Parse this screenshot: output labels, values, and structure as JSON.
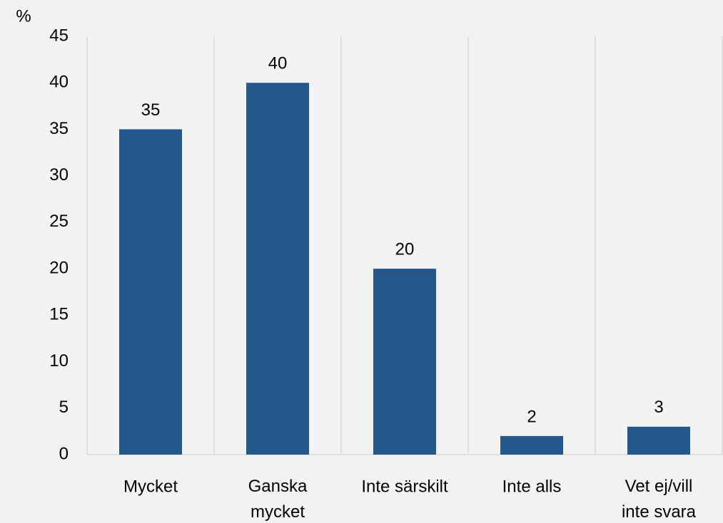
{
  "chart_data": {
    "type": "bar",
    "y_axis_label": "%",
    "categories": [
      "Mycket",
      "Ganska\nmycket",
      "Inte särskilt",
      "Inte alls",
      "Vet ej/vill\ninte svara"
    ],
    "values": [
      35,
      40,
      20,
      2,
      3
    ],
    "color": "#24578a",
    "ylim": [
      0,
      45
    ],
    "yticks": [
      0,
      5,
      10,
      15,
      20,
      25,
      30,
      35,
      40,
      45
    ],
    "grid": false
  }
}
